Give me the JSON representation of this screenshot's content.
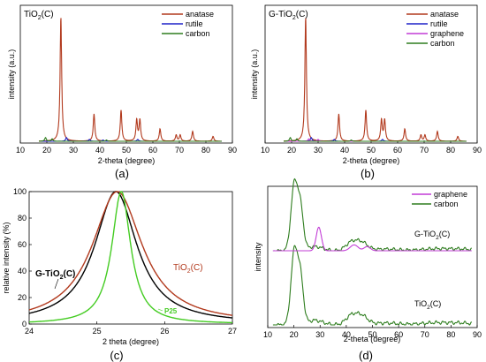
{
  "panel_labels": [
    "(a)",
    "(b)",
    "(c)",
    "(d)"
  ],
  "chart_data": [
    {
      "id": "a",
      "type": "line",
      "title": "TiO2(C)",
      "title_main": "TiO",
      "title_sub": "2",
      "title_tail": "(C)",
      "xlabel": "2-theta (degree)",
      "ylabel": "intensity (a.u.)",
      "xlim": [
        10,
        90
      ],
      "x_ticks": [
        "10",
        "20",
        "30",
        "40",
        "50",
        "60",
        "70",
        "80",
        "90"
      ],
      "x_tick_values": [
        10,
        20,
        30,
        40,
        50,
        60,
        70,
        80,
        90
      ],
      "legend_position": "top-right",
      "series": [
        {
          "name": "anatase",
          "color": "#b23a1e",
          "peaks": [
            [
              25.3,
              1.0
            ],
            [
              37.8,
              0.22
            ],
            [
              48.0,
              0.25
            ],
            [
              53.9,
              0.17
            ],
            [
              55.1,
              0.17
            ],
            [
              62.7,
              0.1
            ],
            [
              68.8,
              0.05
            ],
            [
              70.3,
              0.05
            ],
            [
              75.0,
              0.08
            ],
            [
              82.7,
              0.04
            ]
          ]
        },
        {
          "name": "rutile",
          "color": "#1e22c8",
          "peaks": [
            [
              27.4,
              0.03
            ],
            [
              36.1,
              0.015
            ],
            [
              41.2,
              0.01
            ],
            [
              54.3,
              0.015
            ]
          ]
        },
        {
          "name": "carbon",
          "color": "#2e7d1e",
          "peaks": [
            [
              19.5,
              0.03
            ],
            [
              22.0,
              0.02
            ],
            [
              42.5,
              0.01
            ]
          ]
        }
      ]
    },
    {
      "id": "b",
      "type": "line",
      "title": "G-TiO2(C)",
      "title_main": "G-TiO",
      "title_sub": "2",
      "title_tail": "(C)",
      "xlabel": "2-theta (degree)",
      "ylabel": "intensity (a.u.)",
      "xlim": [
        10,
        90
      ],
      "x_ticks": [
        "10",
        "20",
        "30",
        "40",
        "50",
        "60",
        "70",
        "80",
        "90"
      ],
      "x_tick_values": [
        10,
        20,
        30,
        40,
        50,
        60,
        70,
        80,
        90
      ],
      "legend_position": "top-right",
      "series": [
        {
          "name": "anatase",
          "color": "#b23a1e",
          "peaks": [
            [
              25.3,
              1.0
            ],
            [
              37.8,
              0.22
            ],
            [
              48.0,
              0.25
            ],
            [
              53.9,
              0.17
            ],
            [
              55.1,
              0.17
            ],
            [
              62.7,
              0.1
            ],
            [
              68.8,
              0.05
            ],
            [
              70.3,
              0.05
            ],
            [
              75.0,
              0.08
            ],
            [
              82.7,
              0.04
            ]
          ]
        },
        {
          "name": "rutile",
          "color": "#1e22c8",
          "peaks": [
            [
              27.4,
              0.03
            ],
            [
              36.1,
              0.015
            ],
            [
              54.3,
              0.015
            ]
          ]
        },
        {
          "name": "graphene",
          "color": "#c23cd6",
          "peaks": [
            [
              26.5,
              0.02
            ],
            [
              30.0,
              0.015
            ]
          ]
        },
        {
          "name": "carbon",
          "color": "#2e7d1e",
          "peaks": [
            [
              19.5,
              0.03
            ],
            [
              22.0,
              0.02
            ],
            [
              42.5,
              0.01
            ]
          ]
        }
      ]
    },
    {
      "id": "c",
      "type": "line",
      "xlabel": "2 theta (degree)",
      "ylabel": "relative intensity (%)",
      "xlim": [
        24,
        27
      ],
      "ylim": [
        0,
        100
      ],
      "x_ticks": [
        "24",
        "25",
        "26",
        "27"
      ],
      "x_tick_values": [
        24,
        25,
        26,
        27
      ],
      "y_ticks": [
        "0",
        "20",
        "40",
        "60",
        "80",
        "100"
      ],
      "y_tick_values": [
        0,
        20,
        40,
        60,
        80,
        100
      ],
      "annotations": {
        "g_tio2": {
          "main": "G-TiO",
          "sub": "2",
          "tail": "(C)"
        },
        "tio2": {
          "main": "TiO",
          "sub": "2",
          "tail": "(C)"
        },
        "p25": "P25"
      },
      "series": [
        {
          "name": "G-TiO2(C)",
          "color": "#000000",
          "center": 25.28,
          "hwhm": 0.38
        },
        {
          "name": "TiO2(C)",
          "color": "#b23a1e",
          "center": 25.3,
          "hwhm": 0.45
        },
        {
          "name": "P25",
          "color": "#44cc22",
          "center": 25.36,
          "hwhm": 0.17
        }
      ]
    },
    {
      "id": "d",
      "type": "line",
      "xlabel": "2-theta (degree)",
      "ylabel": "intensity",
      "xlim": [
        10,
        90
      ],
      "x_ticks": [
        "10",
        "20",
        "30",
        "40",
        "50",
        "60",
        "70",
        "80",
        "90"
      ],
      "x_tick_values": [
        10,
        20,
        30,
        40,
        50,
        60,
        70,
        80,
        90
      ],
      "legend_position": "top-right",
      "trace_labels": {
        "top": {
          "main": "G-TiO",
          "sub": "2",
          "tail": "(C)"
        },
        "bottom": {
          "main": "TiO",
          "sub": "2",
          "tail": "(C)"
        }
      },
      "series": [
        {
          "name": "graphene",
          "color": "#c23cd6"
        },
        {
          "name": "carbon",
          "color": "#2e7d1e"
        }
      ]
    }
  ]
}
